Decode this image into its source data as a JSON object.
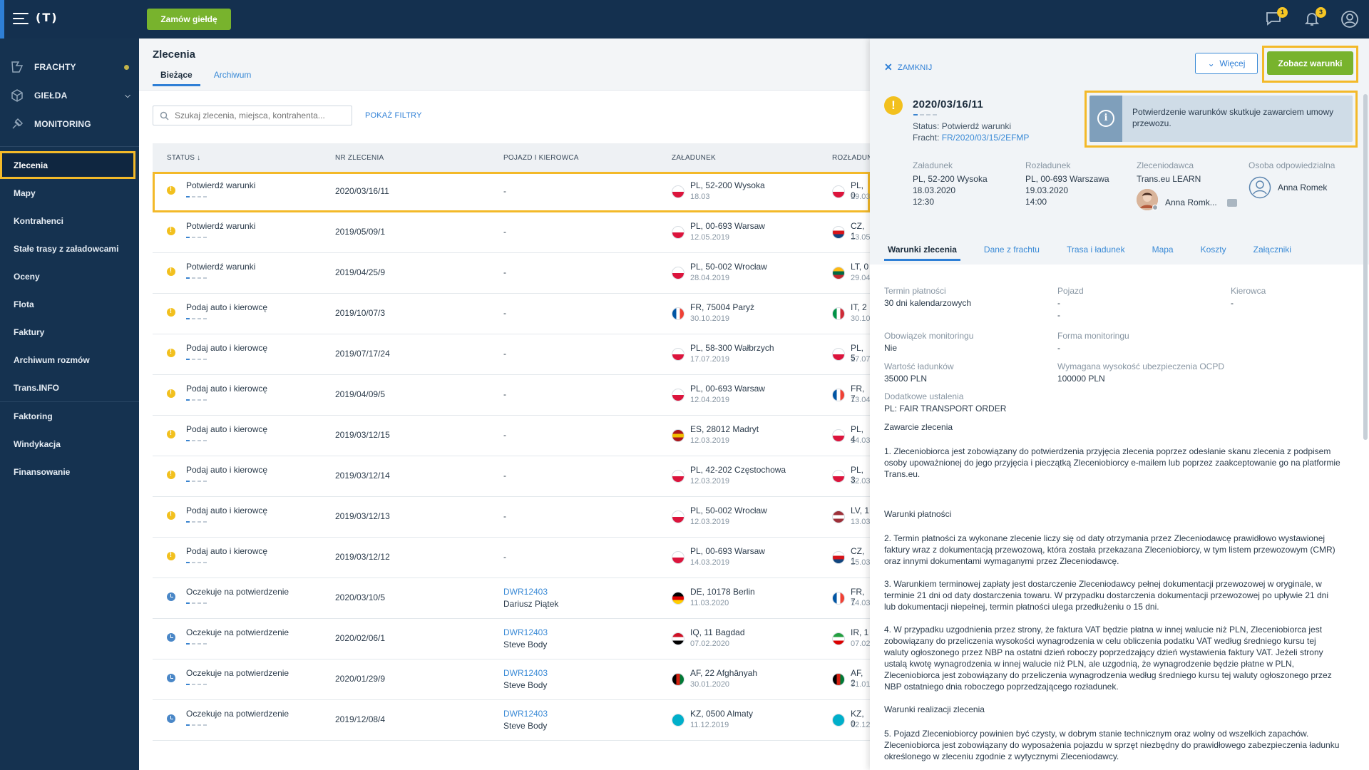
{
  "topbar": {
    "logo": "(T)",
    "exchange_button": "Zamów giełdę",
    "messages_badge": "1",
    "notifications_badge": "3"
  },
  "sidebar": {
    "main": [
      {
        "label": "FRACHTY"
      },
      {
        "label": "GIEŁDA"
      },
      {
        "label": "MONITORING"
      }
    ],
    "items": [
      {
        "label": "Zlecenia"
      },
      {
        "label": "Mapy"
      },
      {
        "label": "Kontrahenci"
      },
      {
        "label": "Stałe trasy z załadowcami"
      },
      {
        "label": "Oceny"
      },
      {
        "label": "Flota"
      },
      {
        "label": "Faktury"
      },
      {
        "label": "Archiwum rozmów"
      },
      {
        "label": "Trans.INFO"
      }
    ],
    "finance": [
      {
        "label": "Faktoring"
      },
      {
        "label": "Windykacja"
      },
      {
        "label": "Finansowanie"
      }
    ]
  },
  "main": {
    "title": "Zlecenia",
    "tabs": [
      "Bieżące",
      "Archiwum"
    ],
    "search_placeholder": "Szukaj zlecenia, miejsca, kontrahenta...",
    "filters_link": "POKAŻ FILTRY",
    "columns": [
      "STATUS ↓",
      "NR ZLECENIA",
      "POJAZD I KIEROWCA",
      "ZAŁADUNEK",
      "ROZŁADUNEK"
    ],
    "rows": [
      {
        "status": "Potwierdź warunki",
        "no": "2020/03/16/11",
        "vehicle": "-",
        "driver": "",
        "load": "PL, 52-200 Wysoka",
        "load_date": "18.03",
        "unload": "PL, 0",
        "unload_date": "19.03"
      },
      {
        "status": "Potwierdź warunki",
        "no": "2019/05/09/1",
        "vehicle": "-",
        "driver": "",
        "load": "PL, 00-693 Warsaw",
        "load_date": "12.05.2019",
        "unload": "CZ, 1",
        "unload_date": "13.05"
      },
      {
        "status": "Potwierdź warunki",
        "no": "2019/04/25/9",
        "vehicle": "-",
        "driver": "",
        "load": "PL, 50-002 Wrocław",
        "load_date": "28.04.2019",
        "unload": "LT, 0",
        "unload_date": "29.04"
      },
      {
        "status": "Podaj auto i kierowcę",
        "no": "2019/10/07/3",
        "vehicle": "-",
        "driver": "",
        "load": "FR, 75004 Paryż",
        "load_date": "30.10.2019",
        "unload": "IT, 2",
        "unload_date": "30.10"
      },
      {
        "status": "Podaj auto i kierowcę",
        "no": "2019/07/17/24",
        "vehicle": "-",
        "driver": "",
        "load": "PL, 58-300 Wałbrzych",
        "load_date": "17.07.2019",
        "unload": "PL, 5",
        "unload_date": "17.07"
      },
      {
        "status": "Podaj auto i kierowcę",
        "no": "2019/04/09/5",
        "vehicle": "-",
        "driver": "",
        "load": "PL, 00-693 Warsaw",
        "load_date": "12.04.2019",
        "unload": "FR, 7",
        "unload_date": "13.04"
      },
      {
        "status": "Podaj auto i kierowcę",
        "no": "2019/03/12/15",
        "vehicle": "-",
        "driver": "",
        "load": "ES, 28012 Madryt",
        "load_date": "12.03.2019",
        "unload": "PL, 4",
        "unload_date": "14.03"
      },
      {
        "status": "Podaj auto i kierowcę",
        "no": "2019/03/12/14",
        "vehicle": "-",
        "driver": "",
        "load": "PL, 42-202 Częstochowa",
        "load_date": "12.03.2019",
        "unload": "PL, 3",
        "unload_date": "12.03"
      },
      {
        "status": "Podaj auto i kierowcę",
        "no": "2019/03/12/13",
        "vehicle": "-",
        "driver": "",
        "load": "PL, 50-002 Wrocław",
        "load_date": "12.03.2019",
        "unload": "LV, 1",
        "unload_date": "13.03"
      },
      {
        "status": "Podaj auto i kierowcę",
        "no": "2019/03/12/12",
        "vehicle": "-",
        "driver": "",
        "load": "PL, 00-693 Warsaw",
        "load_date": "14.03.2019",
        "unload": "CZ, 1",
        "unload_date": "15.03"
      },
      {
        "status": "Oczekuje na potwierdzenie",
        "no": "2020/03/10/5",
        "vehicle": "DWR12403",
        "driver": "Dariusz Piątek",
        "load": "DE, 10178 Berlin",
        "load_date": "11.03.2020",
        "unload": "FR, 7",
        "unload_date": "14.03"
      },
      {
        "status": "Oczekuje na potwierdzenie",
        "no": "2020/02/06/1",
        "vehicle": "DWR12403",
        "driver": "Steve Body",
        "load": "IQ, 11 Bagdad",
        "load_date": "07.02.2020",
        "unload": "IR, 1",
        "unload_date": "07.02"
      },
      {
        "status": "Oczekuje na potwierdzenie",
        "no": "2020/01/29/9",
        "vehicle": "DWR12403",
        "driver": "Steve Body",
        "load": "AF, 22 Afghānyah",
        "load_date": "30.01.2020",
        "unload": "AF, 2",
        "unload_date": "31.01"
      },
      {
        "status": "Oczekuje na potwierdzenie",
        "no": "2019/12/08/4",
        "vehicle": "DWR12403",
        "driver": "Steve Body",
        "load": "KZ, 0500 Almaty",
        "load_date": "11.12.2019",
        "unload": "KZ, 0",
        "unload_date": "12.12"
      }
    ]
  },
  "panel": {
    "close": "ZAMKNIJ",
    "more_button": "Więcej",
    "terms_button": "Zobacz warunki",
    "order_no": "2020/03/16/11",
    "status": "Status: Potwierdź warunki",
    "freight_label": "Fracht: ",
    "freight_link": "FR/2020/03/15/2EFMP",
    "info": "Potwierdzenie warunków skutkuje zawarciem umowy przewozu.",
    "loading": {
      "label": "Załadunek",
      "place": "PL, 52-200 Wysoka",
      "date": "18.03.2020",
      "time": "12:30"
    },
    "unloading": {
      "label": "Rozładunek",
      "place": "PL, 00-693 Warszawa",
      "date": "19.03.2020",
      "time": "14:00"
    },
    "client": {
      "label": "Zleceniodawca",
      "name": "Trans.eu LEARN",
      "person": "Anna Romk..."
    },
    "responsible": {
      "label": "Osoba odpowiedzialna",
      "name": "Anna Romek"
    },
    "tabs": [
      "Warunki zlecenia",
      "Dane z frachtu",
      "Trasa i ładunek",
      "Mapa",
      "Koszty",
      "Załączniki"
    ],
    "fields": {
      "payment_label": "Termin płatności",
      "payment_value": "30 dni kalendarzowych",
      "vehicle_label": "Pojazd",
      "vehicle_value": "-",
      "vehicle_value2": "-",
      "driver_label": "Kierowca",
      "driver_value": "-",
      "monitoring_label": "Obowiązek monitoringu",
      "monitoring_value": "Nie",
      "monitoring_form_label": "Forma monitoringu",
      "monitoring_form_value": "-",
      "cargo_value_label": "Wartość ładunków",
      "cargo_value": "35000 PLN",
      "insurance_label": "Wymagana wysokość ubezpieczenia OCPD",
      "insurance_value": "100000 PLN",
      "extra_label": "Dodatkowe ustalenia",
      "extra_value": "PL: FAIR TRANSPORT ORDER"
    },
    "terms": {
      "h1": "Zawarcie zlecenia",
      "p1": "1. Zleceniobiorca jest zobowiązany do potwierdzenia przyjęcia zlecenia poprzez odesłanie skanu zlecenia z podpisem osoby upoważnionej do jego przyjęcia i pieczątką Zleceniobiorcy e-mailem lub poprzez zaakceptowanie go na platformie Trans.eu.",
      "h2": "Warunki płatności",
      "p2": "2. Termin płatności za wykonane zlecenie liczy się od daty otrzymania przez Zleceniodawcę prawidłowo wystawionej faktury wraz z dokumentacją przewozową, która została przekazana Zleceniobiorcy, w tym listem przewozowym (CMR) oraz innymi dokumentami wymaganymi przez Zleceniodawcę.",
      "p3": "3. Warunkiem terminowej zapłaty jest dostarczenie Zleceniodawcy pełnej dokumentacji przewozowej w oryginale, w terminie 21 dni od daty dostarczenia towaru. W przypadku dostarczenia dokumentacji przewozowej po upływie 21 dni lub dokumentacji niepełnej, termin płatności ulega przedłużeniu o 15 dni.",
      "p4": "4. W przypadku uzgodnienia przez strony, że faktura VAT będzie płatna w innej walucie niż PLN, Zleceniobiorca jest zobowiązany do przeliczenia wysokości wynagrodzenia w celu obliczenia podatku VAT według średniego kursu tej waluty ogłoszonego przez NBP na ostatni dzień roboczy poprzedzający dzień wystawienia faktury VAT. Jeżeli strony ustalą kwotę wynagrodzenia w innej walucie niż PLN, ale uzgodnią, że wynagrodzenie będzie płatne w PLN, Zleceniobiorca jest zobowiązany do przeliczenia wynagrodzenia według średniego kursu tej waluty ogłoszonego przez NBP ostatniego dnia roboczego poprzedzającego rozładunek.",
      "h3": "Warunki realizacji zlecenia",
      "p5": "5. Pojazd Zleceniobiorcy powinien być czysty, w dobrym stanie technicznym    oraz wolny od wszelkich zapachów. Zleceniobiorca jest zobowiązany do wyposażenia pojazdu w sprzęt niezbędny do prawidłowego zabezpieczenia ładunku określonego w zleceniu zgodnie z wytycznymi Zleceniodawcy."
    }
  }
}
